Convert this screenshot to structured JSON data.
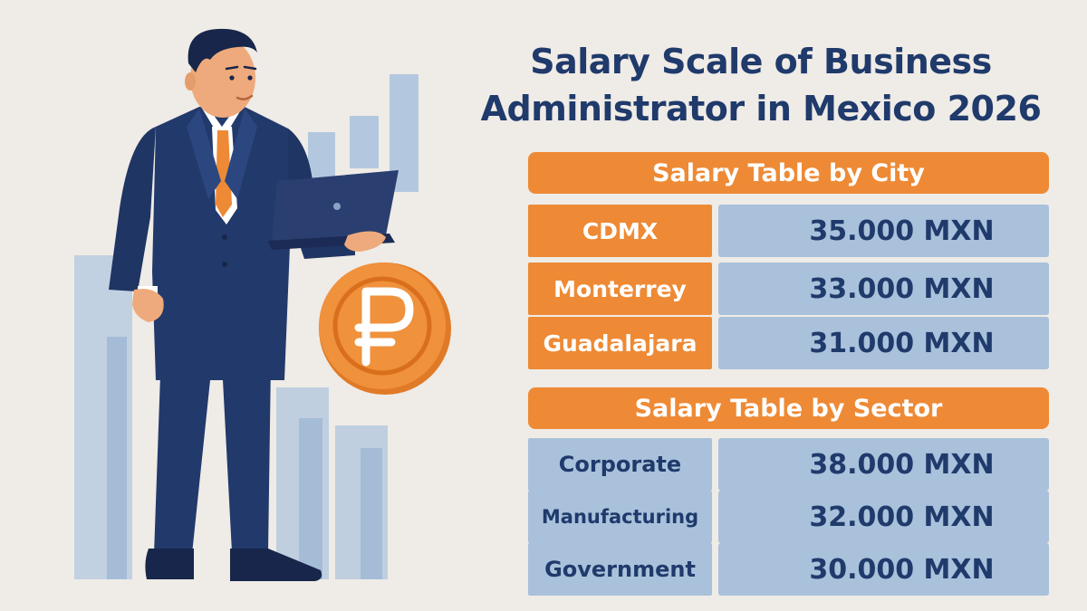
{
  "title": {
    "line1": "Salary Scale of Business",
    "line2": "Administrator in Mexico 2026"
  },
  "city_table": {
    "header": "Salary Table by City",
    "rows": [
      {
        "label": "CDMX",
        "value": "35.000 MXN"
      },
      {
        "label": "Monterrey",
        "value": "33.000 MXN"
      },
      {
        "label": "Guadalajara",
        "value": "31.000 MXN"
      }
    ]
  },
  "sector_table": {
    "header": "Salary Table by Sector",
    "rows": [
      {
        "label": "Corporate",
        "value": "38.000 MXN"
      },
      {
        "label": "Manufacturing",
        "value": "32.000 MXN"
      },
      {
        "label": "Government",
        "value": "30.000 MXN"
      }
    ]
  },
  "illustration": {
    "figure": "businessman-with-laptop",
    "coin_icon": "currency-coin-icon",
    "background": "bar-chart-shapes"
  },
  "colors": {
    "background": "#efebe6",
    "title": "#1f3a6b",
    "accent_orange": "#ee8a35",
    "cell_blue": "#a9c1db",
    "suit_navy": "#22396b"
  }
}
